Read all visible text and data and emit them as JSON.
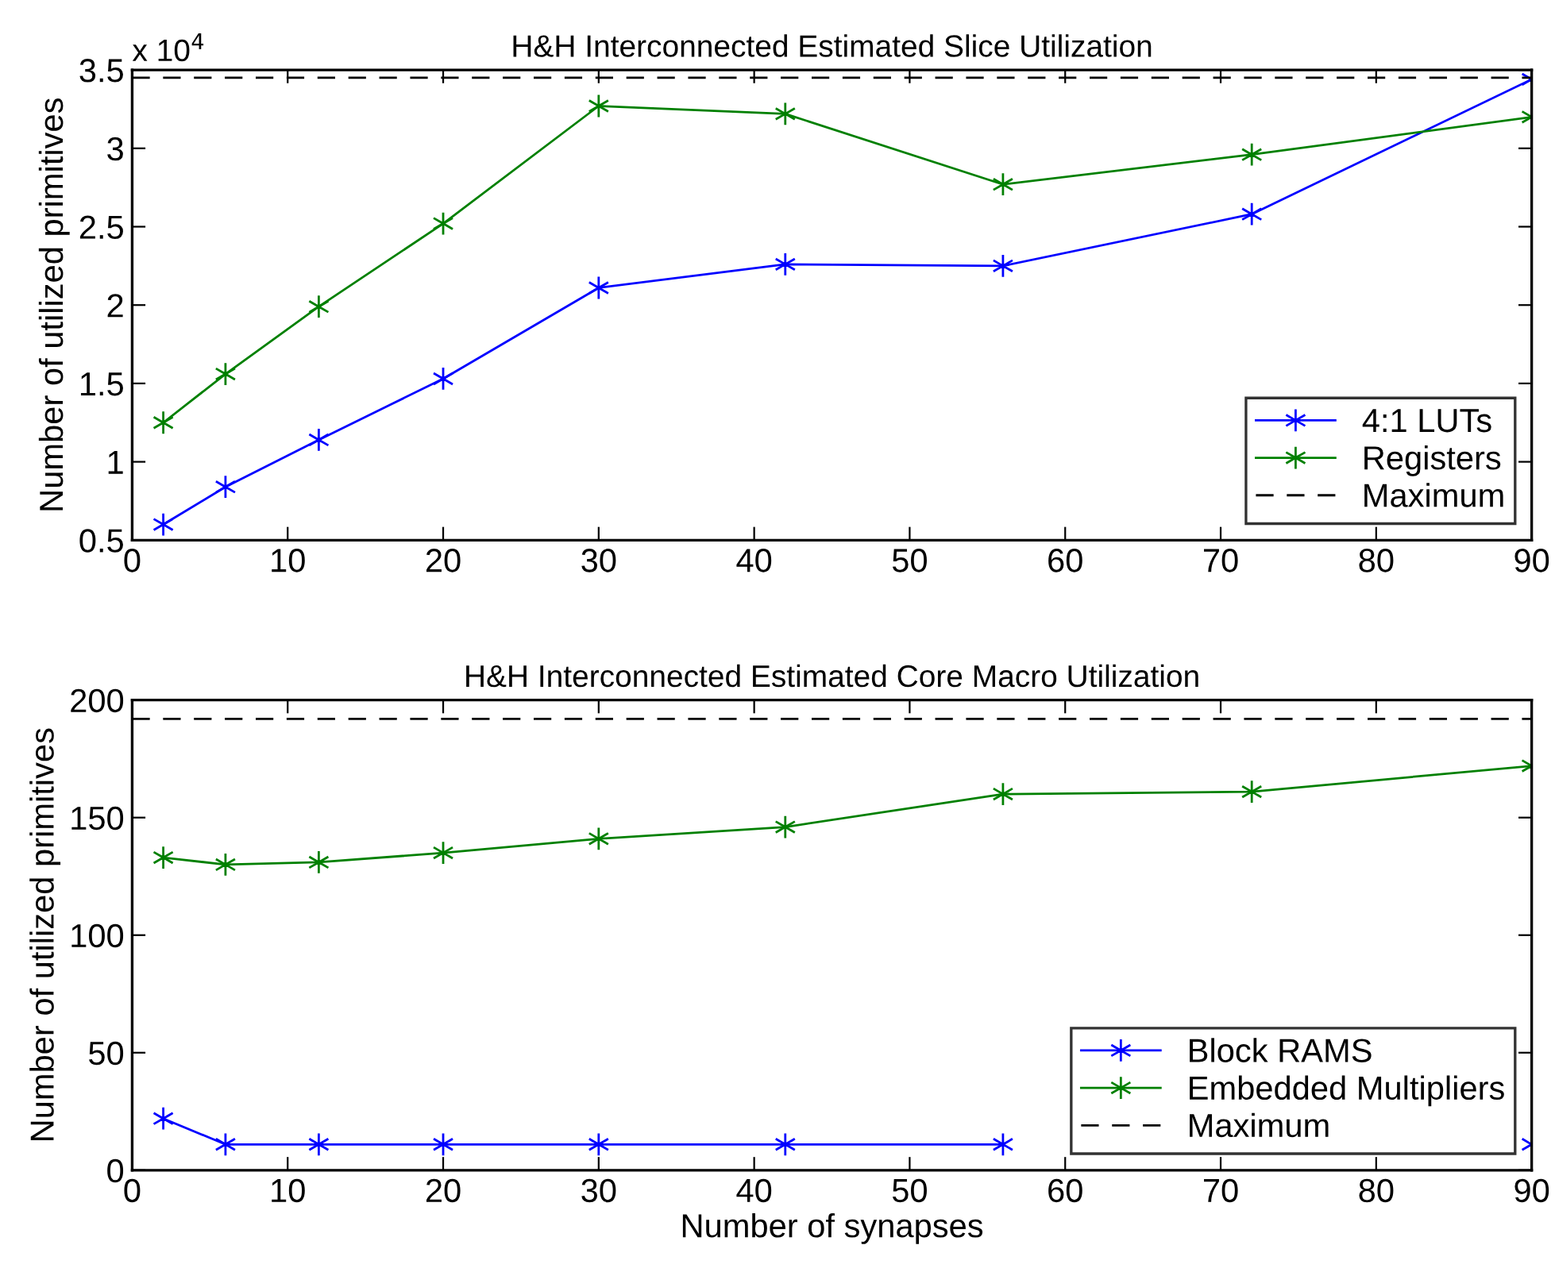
{
  "chart_data": [
    {
      "type": "line",
      "title": "H&H Interconnected Estimated Slice Utilization",
      "ylabel": "Number of utilized primitives",
      "x": [
        2,
        6,
        12,
        20,
        30,
        42,
        56,
        72,
        90
      ],
      "series": [
        {
          "name": "4:1 LUTs",
          "color": "#0000ff",
          "values": [
            0.6,
            0.84,
            1.14,
            1.53,
            2.11,
            2.26,
            2.25,
            2.58,
            3.44
          ]
        },
        {
          "name": "Registers",
          "color": "#008000",
          "values": [
            1.25,
            1.56,
            1.99,
            2.52,
            3.27,
            3.22,
            2.77,
            2.96,
            3.2
          ]
        }
      ],
      "ref_lines": [
        {
          "axis": "y",
          "value": 3.45,
          "label": "Maximum",
          "color": "#000000",
          "line_style": "dashed"
        }
      ],
      "xlim": [
        0,
        90
      ],
      "xticks": [
        0,
        10,
        20,
        30,
        40,
        50,
        60,
        70,
        80,
        90
      ],
      "ylim": [
        0.5,
        3.5
      ],
      "yticks": [
        0.5,
        1,
        1.5,
        2,
        2.5,
        3,
        3.5
      ],
      "annotations": [
        "x 10$^{4}$"
      ],
      "legend": "bottom right",
      "marker": "cross",
      "line_style": "solid",
      "grid": false
    },
    {
      "type": "line",
      "title": "H&H Interconnected Estimated Core Macro Utilization",
      "xlabel": "Number of synapses",
      "ylabel": "Number of utilized primitives",
      "x": [
        2,
        6,
        12,
        20,
        30,
        42,
        56,
        72,
        90
      ],
      "series": [
        {
          "name": "Block RAMS",
          "color": "#0000ff",
          "values": [
            22,
            11,
            11,
            11,
            11,
            11,
            11,
            null,
            11
          ]
        },
        {
          "name": "Embedded Multipliers",
          "color": "#008000",
          "values": [
            133,
            130,
            131,
            135,
            141,
            146,
            160,
            161,
            172
          ]
        }
      ],
      "ref_lines": [
        {
          "axis": "y",
          "value": 192,
          "label": "Maximum",
          "color": "#000000",
          "line_style": "dashed"
        }
      ],
      "xlim": [
        0,
        90
      ],
      "xticks": [
        0,
        10,
        20,
        30,
        40,
        50,
        60,
        70,
        80,
        90
      ],
      "ylim": [
        0,
        200
      ],
      "yticks": [
        0,
        50,
        100,
        150,
        200
      ],
      "legend": "bottom right",
      "marker": "cross",
      "line_style": "solid",
      "grid": false
    }
  ]
}
